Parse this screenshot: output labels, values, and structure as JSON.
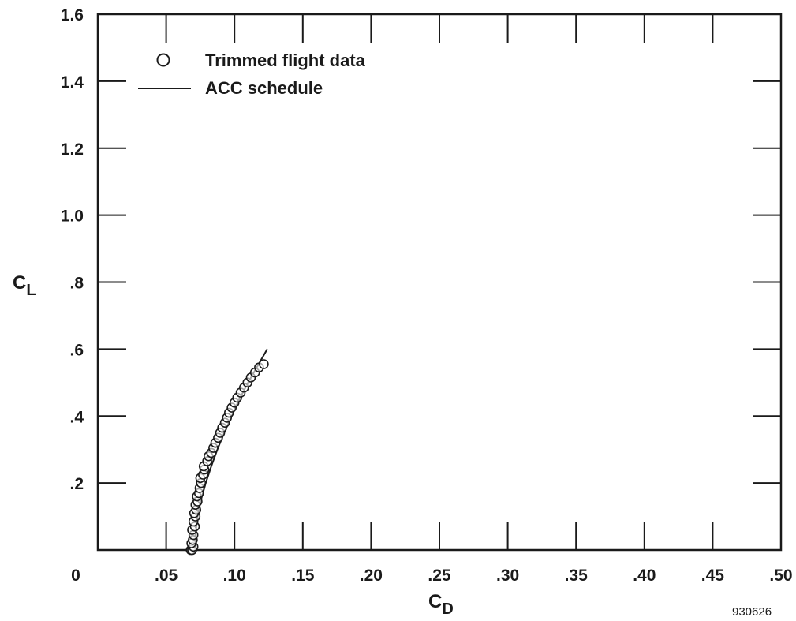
{
  "chart_data": {
    "type": "scatter",
    "xlabel": "C",
    "xlabel_sub": "D",
    "ylabel": "C",
    "ylabel_sub": "L",
    "xlim": [
      0,
      0.5
    ],
    "ylim": [
      0,
      1.6
    ],
    "x_ticks": [
      0,
      0.05,
      0.1,
      0.15,
      0.2,
      0.25,
      0.3,
      0.35,
      0.4,
      0.45,
      0.5
    ],
    "x_tick_labels": [
      "0",
      ".05",
      ".10",
      ".15",
      ".20",
      ".25",
      ".30",
      ".35",
      ".40",
      ".45",
      ".50"
    ],
    "y_ticks": [
      0.2,
      0.4,
      0.6,
      0.8,
      1.0,
      1.2,
      1.4,
      1.6
    ],
    "y_tick_labels": [
      ".2",
      ".4",
      ".6",
      ".8",
      "1.0",
      "1.2",
      "1.4",
      "1.6"
    ],
    "grid": false,
    "legend_position": "top-left",
    "series": [
      {
        "name": "Trimmed flight data",
        "kind": "scatter",
        "marker": "open-circle",
        "points": [
          [
            0.068,
            0.0
          ],
          [
            0.069,
            0.0
          ],
          [
            0.07,
            0.01
          ],
          [
            0.0685,
            0.02
          ],
          [
            0.0695,
            0.03
          ],
          [
            0.07,
            0.045
          ],
          [
            0.069,
            0.06
          ],
          [
            0.071,
            0.07
          ],
          [
            0.07,
            0.085
          ],
          [
            0.0715,
            0.1
          ],
          [
            0.0705,
            0.11
          ],
          [
            0.072,
            0.12
          ],
          [
            0.0715,
            0.135
          ],
          [
            0.073,
            0.145
          ],
          [
            0.0725,
            0.16
          ],
          [
            0.074,
            0.17
          ],
          [
            0.0745,
            0.185
          ],
          [
            0.0755,
            0.2
          ],
          [
            0.075,
            0.215
          ],
          [
            0.077,
            0.225
          ],
          [
            0.078,
            0.24
          ],
          [
            0.0775,
            0.25
          ],
          [
            0.08,
            0.265
          ],
          [
            0.081,
            0.28
          ],
          [
            0.083,
            0.29
          ],
          [
            0.0845,
            0.305
          ],
          [
            0.086,
            0.32
          ],
          [
            0.088,
            0.335
          ],
          [
            0.0895,
            0.35
          ],
          [
            0.091,
            0.365
          ],
          [
            0.093,
            0.38
          ],
          [
            0.0945,
            0.395
          ],
          [
            0.096,
            0.41
          ],
          [
            0.098,
            0.425
          ],
          [
            0.1,
            0.44
          ],
          [
            0.102,
            0.455
          ],
          [
            0.1045,
            0.47
          ],
          [
            0.107,
            0.485
          ],
          [
            0.1095,
            0.5
          ],
          [
            0.112,
            0.515
          ],
          [
            0.115,
            0.53
          ],
          [
            0.118,
            0.545
          ],
          [
            0.1215,
            0.555
          ]
        ]
      },
      {
        "name": "ACC schedule",
        "kind": "line",
        "points": [
          [
            0.071,
            0.0
          ],
          [
            0.0715,
            0.05
          ],
          [
            0.073,
            0.1
          ],
          [
            0.0755,
            0.15
          ],
          [
            0.079,
            0.2
          ],
          [
            0.083,
            0.25
          ],
          [
            0.0875,
            0.3
          ],
          [
            0.0925,
            0.35
          ],
          [
            0.098,
            0.4
          ],
          [
            0.1035,
            0.45
          ],
          [
            0.11,
            0.5
          ],
          [
            0.117,
            0.55
          ],
          [
            0.124,
            0.6
          ]
        ]
      }
    ]
  },
  "figure_id": "930626"
}
